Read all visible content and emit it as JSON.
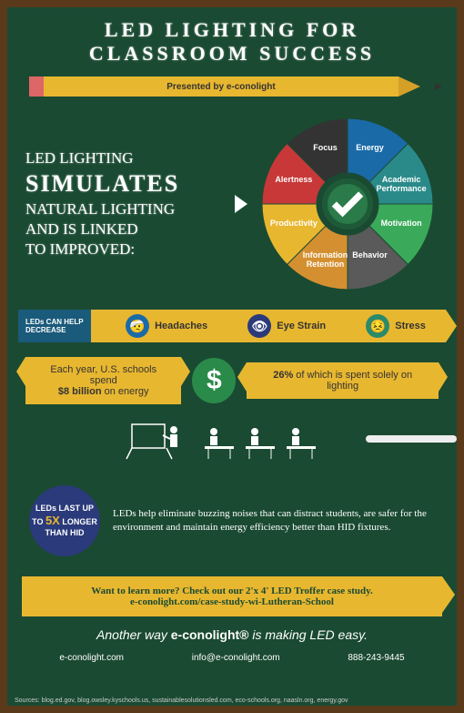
{
  "title": "LED LIGHTING FOR CLASSROOM SUCCESS",
  "presented": "Presented by e-conolight",
  "simulates": {
    "line1": "LED LIGHTING",
    "line2": "SIMULATES",
    "line3": "NATURAL LIGHTING",
    "line4": "AND IS LINKED",
    "line5": "TO IMPROVED:"
  },
  "wheel": {
    "segments": [
      {
        "label": "Energy",
        "color": "#1a6aa8",
        "angle": 22
      },
      {
        "label": "Academic Performance",
        "color": "#2a8a8a",
        "angle": 67
      },
      {
        "label": "Motivation",
        "color": "#3aaa5a",
        "angle": 112
      },
      {
        "label": "Behavior",
        "color": "#5a5a5a",
        "angle": 157
      },
      {
        "label": "Information Retention",
        "color": "#d49030",
        "angle": 202
      },
      {
        "label": "Productivity",
        "color": "#e8b730",
        "angle": 247
      },
      {
        "label": "Alertness",
        "color": "#c83838",
        "angle": 292
      },
      {
        "label": "Focus",
        "color": "#333333",
        "angle": 337
      }
    ],
    "center_bg": "#2a7a4a",
    "center_border": "#1e5a38"
  },
  "decrease": {
    "header": "LEDs CAN HELP DECREASE",
    "items": [
      {
        "label": "Headaches",
        "icon": "🤕",
        "bg": "#1a6aa8"
      },
      {
        "label": "Eye Strain",
        "icon": "👁",
        "bg": "#2a3a7a"
      },
      {
        "label": "Stress",
        "icon": "😣",
        "bg": "#2a8a6a"
      }
    ],
    "banner_color": "#e8b730",
    "chevron_color": "#1a5a7a"
  },
  "stats": {
    "left_pre": "Each year, U.S. schools spend",
    "left_bold": "$8 billion",
    "left_post": " on energy",
    "right_bold": "26%",
    "right_post": " of which is spent solely on lighting",
    "box_color": "#e8b730",
    "dollar_bg": "#2a8a4a"
  },
  "led_fact": {
    "circle_pre": "LEDs LAST UP TO ",
    "circle_big": "5X",
    "circle_post": " LONGER THAN HID",
    "circle_bg": "#2a3a7a",
    "text": "LEDs help eliminate buzzing noises that can distract students, are safer for the environment and maintain energy efficiency better than HID fixtures."
  },
  "cta": {
    "line1": "Want to learn more? Check out our 2'x 4' LED Troffer case study.",
    "line2": "e-conolight.com/case-study-wi-Lutheran-School",
    "bg": "#e8b730"
  },
  "tagline_pre": "Another way ",
  "tagline_logo": "e-conolight®",
  "tagline_post": " is making LED easy.",
  "contact": {
    "web": "e-conolight.com",
    "email": "info@e-conolight.com",
    "phone": "888-243-9445"
  },
  "sources": "Sources: blog.ed.gov, blog.owsley.kyschools.us, sustainablesolutionsled.com, eco-schools.org, naasln.org, energy.gov"
}
